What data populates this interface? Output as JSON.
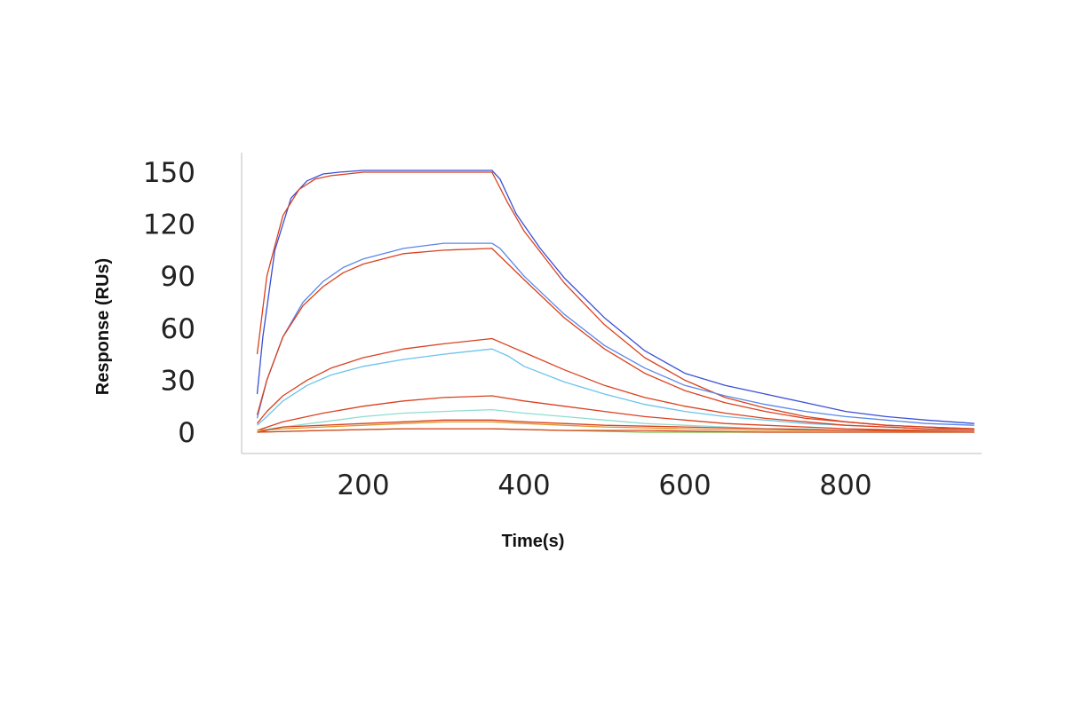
{
  "chart_data": {
    "type": "line",
    "title": "",
    "xlabel": "Time(s)",
    "ylabel": "Response (RUs)",
    "xlim": [
      65,
      960
    ],
    "ylim": [
      -10,
      160
    ],
    "xticks": [
      200,
      400,
      600,
      800
    ],
    "yticks": [
      0,
      30,
      60,
      90,
      120,
      150
    ],
    "xtick_labels": [
      "200",
      "400",
      "600",
      "800"
    ],
    "ytick_labels": [
      "0",
      "30",
      "60",
      "90",
      "120",
      "150"
    ],
    "grid": false,
    "legend": "none",
    "series": [
      {
        "role": "measured",
        "color": "#3a4fd6",
        "x": [
          68,
          75,
          90,
          110,
          130,
          150,
          170,
          200,
          250,
          300,
          360,
          370,
          390,
          420,
          450,
          500,
          550,
          600,
          650,
          700,
          750,
          800,
          850,
          900,
          960
        ],
        "y": [
          22,
          55,
          105,
          135,
          145,
          149,
          150,
          151,
          151,
          151,
          151,
          146,
          126,
          106,
          89,
          66,
          47,
          34,
          27,
          22,
          17,
          12,
          9,
          7,
          5
        ]
      },
      {
        "role": "fit",
        "color": "#d9411e",
        "x": [
          68,
          80,
          100,
          120,
          140,
          160,
          180,
          200,
          250,
          300,
          360,
          380,
          400,
          450,
          500,
          550,
          600,
          650,
          700,
          750,
          800,
          850,
          900,
          960
        ],
        "y": [
          45,
          90,
          125,
          140,
          146,
          148,
          149,
          150,
          150,
          150,
          150,
          132,
          116,
          86,
          62,
          43,
          30,
          20,
          14,
          9,
          6,
          4,
          3,
          2
        ]
      },
      {
        "role": "measured",
        "color": "#5a86e8",
        "x": [
          68,
          80,
          100,
          125,
          150,
          175,
          200,
          250,
          300,
          360,
          370,
          400,
          450,
          500,
          550,
          600,
          650,
          700,
          750,
          800,
          850,
          900,
          960
        ],
        "y": [
          8,
          30,
          55,
          75,
          87,
          95,
          100,
          106,
          109,
          109,
          106,
          90,
          68,
          50,
          37,
          27,
          21,
          16,
          12,
          9,
          7,
          5,
          4
        ]
      },
      {
        "role": "fit",
        "color": "#d9411e",
        "x": [
          68,
          80,
          100,
          125,
          150,
          175,
          200,
          250,
          300,
          360,
          380,
          400,
          450,
          500,
          550,
          600,
          650,
          700,
          750,
          800,
          850,
          900,
          960
        ],
        "y": [
          10,
          30,
          55,
          73,
          84,
          92,
          97,
          103,
          105,
          106,
          97,
          88,
          66,
          48,
          34,
          24,
          17,
          12,
          8,
          6,
          4,
          3,
          2
        ]
      },
      {
        "role": "measured",
        "color": "#6cc3ea",
        "x": [
          68,
          80,
          100,
          130,
          160,
          200,
          250,
          300,
          360,
          380,
          400,
          450,
          500,
          550,
          600,
          650,
          700,
          750,
          800,
          850,
          900,
          960
        ],
        "y": [
          4,
          9,
          18,
          27,
          33,
          38,
          42,
          45,
          48,
          44,
          38,
          29,
          22,
          16,
          12,
          9,
          7,
          5,
          4,
          3,
          2,
          2
        ]
      },
      {
        "role": "fit",
        "color": "#d9411e",
        "x": [
          68,
          80,
          100,
          130,
          160,
          200,
          250,
          300,
          360,
          380,
          400,
          450,
          500,
          550,
          600,
          650,
          700,
          750,
          800,
          850,
          900,
          960
        ],
        "y": [
          5,
          12,
          21,
          30,
          37,
          43,
          48,
          51,
          54,
          50,
          46,
          36,
          27,
          20,
          15,
          11,
          8,
          6,
          4,
          3,
          2,
          2
        ]
      },
      {
        "role": "measured",
        "color": "#8fdccf",
        "x": [
          68,
          100,
          150,
          200,
          250,
          300,
          360,
          400,
          450,
          500,
          550,
          600,
          650,
          700,
          750,
          800,
          900,
          960
        ],
        "y": [
          1,
          3,
          6,
          9,
          11,
          12,
          13,
          11,
          9,
          7,
          5,
          4,
          3,
          2,
          2,
          1,
          1,
          1
        ]
      },
      {
        "role": "fit",
        "color": "#d9411e",
        "x": [
          68,
          100,
          150,
          200,
          250,
          300,
          360,
          400,
          450,
          500,
          550,
          600,
          650,
          700,
          750,
          800,
          900,
          960
        ],
        "y": [
          1,
          6,
          11,
          15,
          18,
          20,
          21,
          18,
          15,
          12,
          9,
          7,
          5,
          4,
          3,
          2,
          1,
          1
        ]
      },
      {
        "role": "measured",
        "color": "#e0952a",
        "x": [
          68,
          100,
          150,
          200,
          250,
          300,
          360,
          400,
          450,
          500,
          600,
          700,
          800,
          960
        ],
        "y": [
          1,
          2,
          3,
          4,
          5,
          6,
          6,
          5,
          4,
          3,
          2,
          1,
          1,
          0
        ]
      },
      {
        "role": "fit",
        "color": "#d9411e",
        "x": [
          68,
          100,
          150,
          200,
          250,
          300,
          360,
          400,
          450,
          500,
          600,
          700,
          800,
          960
        ],
        "y": [
          0,
          3,
          4,
          5,
          6,
          7,
          7,
          6,
          5,
          4,
          3,
          2,
          1,
          1
        ]
      },
      {
        "role": "measured",
        "color": "#7ac04a",
        "x": [
          68,
          150,
          250,
          360,
          450,
          550,
          700,
          960
        ],
        "y": [
          0,
          1,
          2,
          2,
          1,
          0,
          0,
          0
        ]
      },
      {
        "role": "fit",
        "color": "#d9411e",
        "x": [
          68,
          150,
          250,
          360,
          450,
          550,
          700,
          960
        ],
        "y": [
          0,
          1,
          2,
          2,
          1,
          1,
          0,
          0
        ]
      }
    ]
  }
}
